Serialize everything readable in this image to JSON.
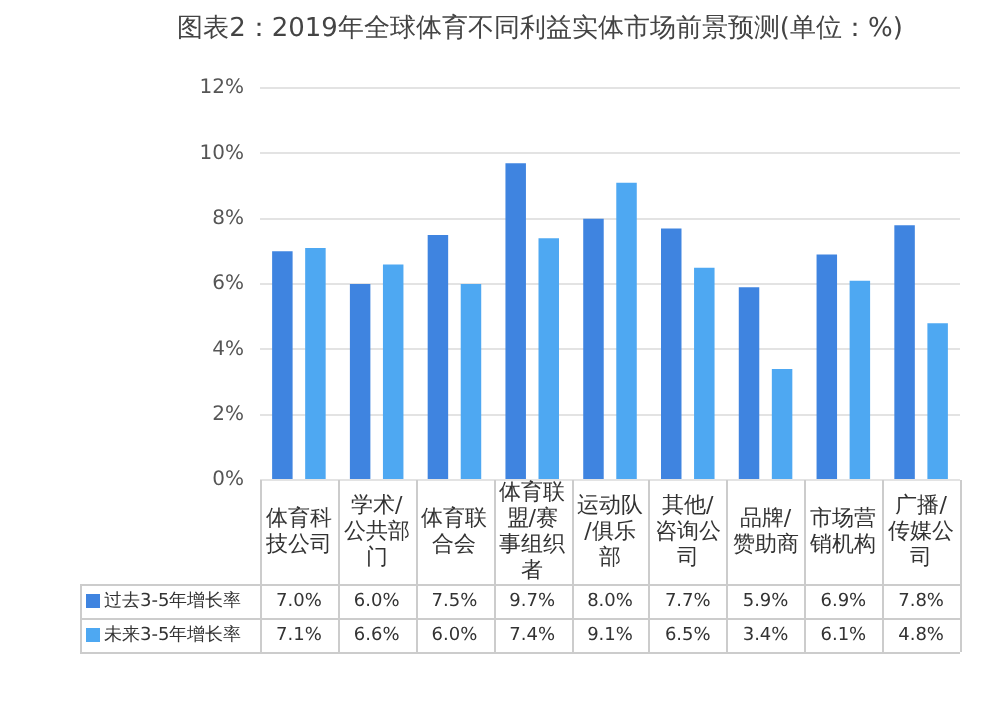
{
  "chart_data": {
    "type": "bar",
    "title": "图表2：2019年全球体育不同利益实体市场前景预测(单位：%)",
    "categories": [
      "体育科技公司",
      "学术/公共部门",
      "体育联合会",
      "体育联盟/赛事组织者",
      "运动队/俱乐部",
      "其他/咨询公司",
      "品牌/赞助商",
      "市场营销机构",
      "广播/传媒公司"
    ],
    "series": [
      {
        "name": "过去3-5年增长率",
        "color": "#3f84e0",
        "values": [
          7.0,
          6.0,
          7.5,
          9.7,
          8.0,
          7.7,
          5.9,
          6.9,
          7.8
        ],
        "value_labels": [
          "7.0%",
          "6.0%",
          "7.5%",
          "9.7%",
          "8.0%",
          "7.7%",
          "5.9%",
          "6.9%",
          "7.8%"
        ]
      },
      {
        "name": "未来3-5年增长率",
        "color": "#4ea8f2",
        "values": [
          7.1,
          6.6,
          6.0,
          7.4,
          9.1,
          6.5,
          3.4,
          6.1,
          4.8
        ],
        "value_labels": [
          "7.1%",
          "6.6%",
          "6.0%",
          "7.4%",
          "9.1%",
          "6.5%",
          "3.4%",
          "6.1%",
          "4.8%"
        ]
      }
    ],
    "ylim": [
      0,
      12
    ],
    "yticks": [
      {
        "value": 0,
        "label": "0%"
      },
      {
        "value": 2,
        "label": "2%"
      },
      {
        "value": 4,
        "label": "4%"
      },
      {
        "value": 6,
        "label": "6%"
      },
      {
        "value": 8,
        "label": "8%"
      },
      {
        "value": 10,
        "label": "10%"
      },
      {
        "value": 12,
        "label": "12%"
      }
    ],
    "grid": "y",
    "legend": "bottom"
  }
}
